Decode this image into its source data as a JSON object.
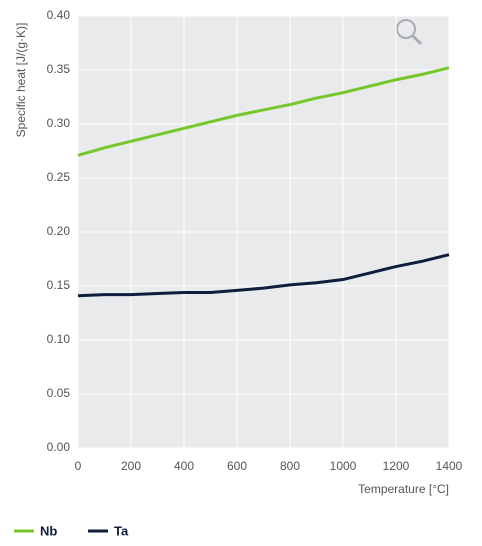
{
  "chart_data": {
    "type": "line",
    "y_label": "Specific heat [J/(g·K)]",
    "x_label": "Temperature [°C]",
    "x": [
      0,
      100,
      200,
      300,
      400,
      500,
      600,
      700,
      800,
      900,
      1000,
      1100,
      1200,
      1300,
      1400
    ],
    "series": [
      {
        "name": "Nb",
        "color": "#76c82a",
        "values": [
          0.271,
          0.278,
          0.284,
          0.29,
          0.296,
          0.302,
          0.308,
          0.313,
          0.318,
          0.324,
          0.329,
          0.335,
          0.341,
          0.346,
          0.352
        ]
      },
      {
        "name": "Ta",
        "color": "#0f1e3c",
        "values": [
          0.141,
          0.142,
          0.142,
          0.143,
          0.144,
          0.144,
          0.146,
          0.148,
          0.151,
          0.153,
          0.156,
          0.162,
          0.168,
          0.173,
          0.179
        ]
      }
    ],
    "xlim": [
      0,
      1400
    ],
    "xticks": [
      0,
      200,
      400,
      600,
      800,
      1000,
      1200,
      1400
    ],
    "ylim": [
      0,
      0.4
    ],
    "yticks": [
      {
        "value": 0,
        "label": "0.00"
      },
      0.05,
      {
        "value": 0.1,
        "label": "0.10"
      },
      0.15,
      {
        "value": 0.2,
        "label": "0.20"
      },
      0.25,
      {
        "value": 0.3,
        "label": "0.30"
      },
      0.35,
      {
        "value": 0.4,
        "label": "0.40"
      }
    ],
    "grid": true
  }
}
